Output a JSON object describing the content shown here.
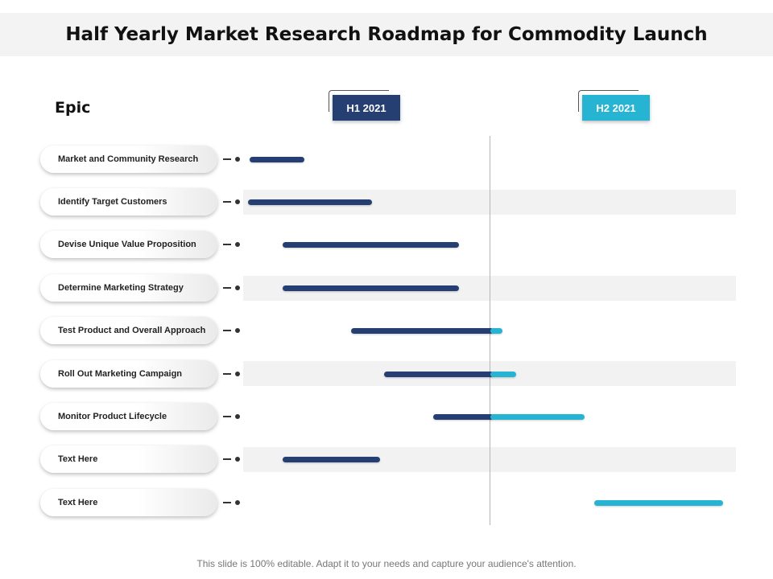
{
  "title": "Half Yearly Market Research Roadmap for Commodity Launch",
  "epic_label": "Epic",
  "periods": [
    {
      "label": "H1 2021",
      "color": "#263f73"
    },
    {
      "label": "H2 2021",
      "color": "#27b4d3"
    }
  ],
  "colors": {
    "h1_bar": "#263f73",
    "h2_bar": "#27b4d3"
  },
  "tasks": [
    {
      "label": "Market and Community Research"
    },
    {
      "label": "Identify Target Customers"
    },
    {
      "label": "Devise Unique Value Proposition"
    },
    {
      "label": "Determine Marketing Strategy"
    },
    {
      "label": "Test Product and Overall Approach"
    },
    {
      "label": "Roll Out Marketing Campaign"
    },
    {
      "label": "Monitor Product Lifecycle"
    },
    {
      "label": "Text Here"
    },
    {
      "label": "Text Here"
    }
  ],
  "footer": "This slide is 100% editable. Adapt it to your needs and capture your audience's attention."
}
